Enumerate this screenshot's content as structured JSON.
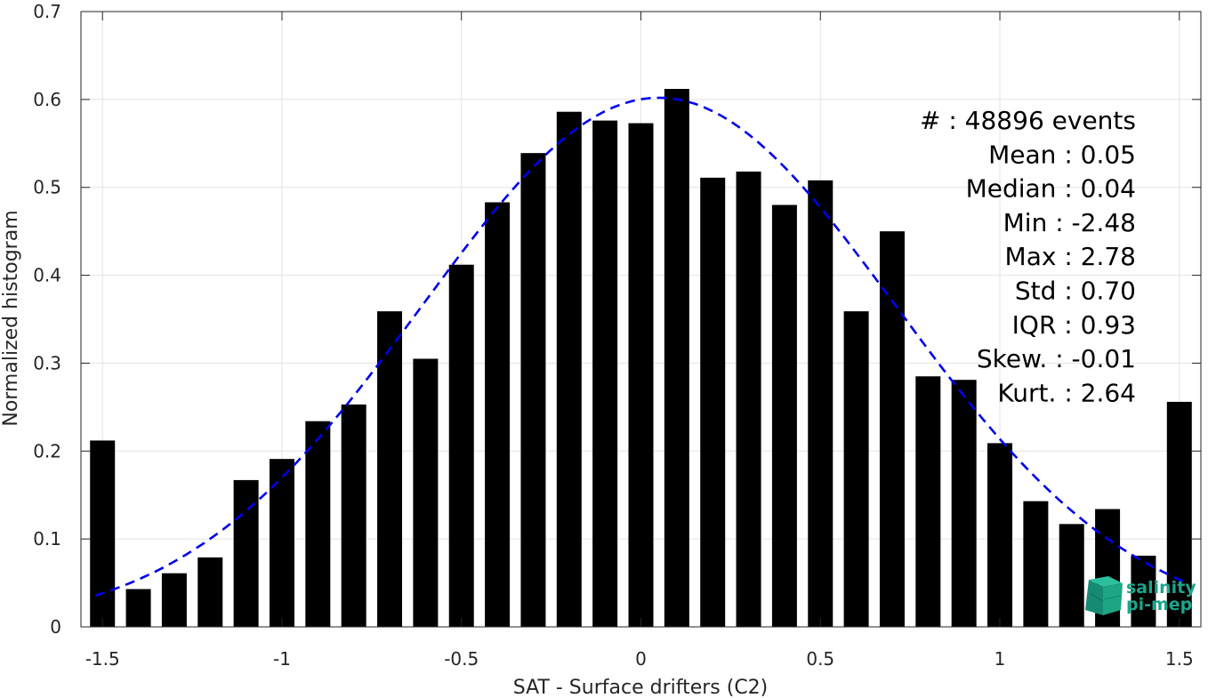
{
  "chart_data": {
    "type": "bar",
    "xlabel": "SAT - Surface drifters (C2)",
    "ylabel": "Normalized histogram",
    "xlim": [
      -1.56,
      1.56
    ],
    "ylim": [
      0,
      0.7
    ],
    "x_ticks": [
      -1.5,
      -1,
      -0.5,
      0,
      0.5,
      1,
      1.5
    ],
    "x_tick_labels": [
      "-1.5",
      "-1",
      "-0.5",
      "0",
      "0.5",
      "1",
      "1.5"
    ],
    "y_ticks": [
      0,
      0.1,
      0.2,
      0.3,
      0.4,
      0.5,
      0.6,
      0.7
    ],
    "y_tick_labels": [
      "0",
      "0.1",
      "0.2",
      "0.3",
      "0.4",
      "0.5",
      "0.6",
      "0.7"
    ],
    "grid": true,
    "bar_color": "#000000",
    "x": [
      -1.5,
      -1.4,
      -1.3,
      -1.2,
      -1.1,
      -1.0,
      -0.9,
      -0.8,
      -0.7,
      -0.6,
      -0.5,
      -0.4,
      -0.3,
      -0.2,
      -0.1,
      0.0,
      0.1,
      0.2,
      0.3,
      0.4,
      0.5,
      0.6,
      0.7,
      0.8,
      0.9,
      1.0,
      1.1,
      1.2,
      1.3,
      1.4,
      1.5
    ],
    "values": [
      0.212,
      0.043,
      0.061,
      0.079,
      0.167,
      0.191,
      0.234,
      0.253,
      0.359,
      0.305,
      0.412,
      0.483,
      0.539,
      0.586,
      0.576,
      0.573,
      0.612,
      0.511,
      0.518,
      0.48,
      0.508,
      0.359,
      0.45,
      0.285,
      0.281,
      0.209,
      0.143,
      0.117,
      0.134,
      0.081,
      0.256
    ],
    "fit": {
      "type": "gaussian",
      "mean": 0.05,
      "std": 0.66,
      "peak": 0.602,
      "x_range": [
        -1.52,
        1.52
      ],
      "color": "#0000ee",
      "style": "dashed"
    },
    "stats": [
      {
        "label": "#  : 48896 events"
      },
      {
        "label": "Mean : 0.05"
      },
      {
        "label": "Median : 0.04"
      },
      {
        "label": "Min : -2.48"
      },
      {
        "label": "Max : 2.78"
      },
      {
        "label": "Std : 0.70"
      },
      {
        "label": "IQR : 0.93"
      },
      {
        "label": "Skew. : -0.01"
      },
      {
        "label": "Kurt. : 2.64"
      }
    ]
  },
  "logo": {
    "line1": "salinity",
    "line2": "pi-mep",
    "color": "#1aa58c"
  }
}
